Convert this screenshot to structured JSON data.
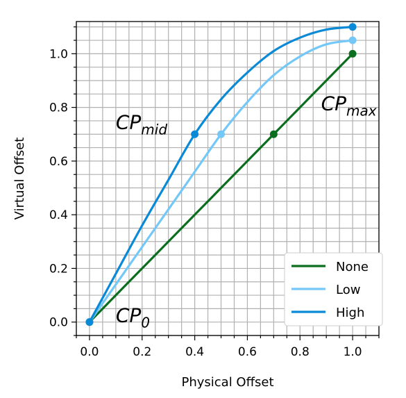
{
  "chart_data": {
    "type": "line",
    "xlabel": "Physical Offset",
    "ylabel": "Virtual Offset",
    "xlim": [
      -0.05,
      1.1
    ],
    "ylim": [
      -0.05,
      1.12
    ],
    "xticks": [
      "0.0",
      "0.2",
      "0.4",
      "0.6",
      "0.8",
      "1.0"
    ],
    "yticks": [
      "0.0",
      "0.2",
      "0.4",
      "0.6",
      "0.8",
      "1.0"
    ],
    "grid": true,
    "legend_position": "bottom-right",
    "series": [
      {
        "name": "None",
        "color": "#0b6e1f",
        "x": [
          0.0,
          0.1,
          0.2,
          0.3,
          0.4,
          0.5,
          0.6,
          0.7,
          0.8,
          0.9,
          1.0
        ],
        "y": [
          0.0,
          0.1,
          0.2,
          0.3,
          0.4,
          0.5,
          0.6,
          0.7,
          0.8,
          0.9,
          1.0
        ],
        "markers": [
          {
            "x": 0.0,
            "y": 0.0
          },
          {
            "x": 0.7,
            "y": 0.7
          },
          {
            "x": 1.0,
            "y": 1.0
          }
        ]
      },
      {
        "name": "Low",
        "color": "#74c8f8",
        "x": [
          0.0,
          0.1,
          0.2,
          0.3,
          0.4,
          0.5,
          0.6,
          0.7,
          0.8,
          0.9,
          1.0
        ],
        "y": [
          0.0,
          0.14,
          0.28,
          0.42,
          0.56,
          0.7,
          0.82,
          0.92,
          0.99,
          1.035,
          1.05
        ],
        "markers": [
          {
            "x": 0.0,
            "y": 0.0
          },
          {
            "x": 0.5,
            "y": 0.7
          },
          {
            "x": 1.0,
            "y": 1.05
          }
        ]
      },
      {
        "name": "High",
        "color": "#0a8ad6",
        "x": [
          0.0,
          0.1,
          0.2,
          0.3,
          0.4,
          0.5,
          0.6,
          0.7,
          0.8,
          0.9,
          1.0
        ],
        "y": [
          0.0,
          0.18,
          0.36,
          0.53,
          0.7,
          0.83,
          0.93,
          1.01,
          1.06,
          1.09,
          1.1
        ],
        "markers": [
          {
            "x": 0.0,
            "y": 0.0
          },
          {
            "x": 0.4,
            "y": 0.7
          },
          {
            "x": 1.0,
            "y": 1.1
          }
        ]
      }
    ],
    "annotations": [
      {
        "base": "CP",
        "sub": "mid",
        "x": 0.1,
        "y": 0.72
      },
      {
        "base": "CP",
        "sub": "max",
        "x": 0.88,
        "y": 0.79
      },
      {
        "base": "CP",
        "sub": "0",
        "x": 0.1,
        "y": 0.0
      }
    ]
  }
}
